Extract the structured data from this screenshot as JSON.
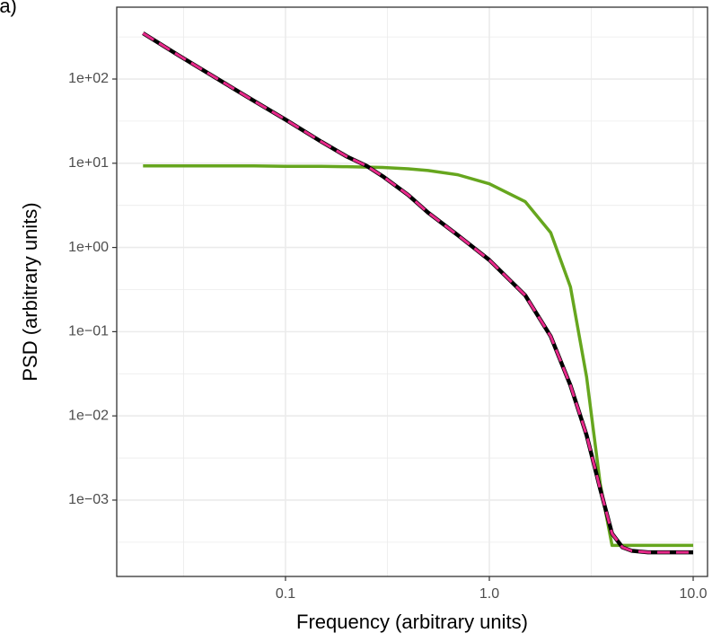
{
  "chart_data": {
    "type": "line",
    "title": "(a)",
    "xlabel": "Frequency (arbitrary units)",
    "ylabel": "PSD (arbitrary units)",
    "log_x": true,
    "log_y": true,
    "grid": true,
    "x": [
      0.02,
      0.03,
      0.05,
      0.07,
      0.1,
      0.15,
      0.2,
      0.25,
      0.3,
      0.4,
      0.5,
      0.7,
      1,
      1.5,
      2,
      2.5,
      3,
      3.5,
      4,
      4.5,
      5,
      6,
      7,
      8,
      10
    ],
    "series": [
      {
        "color": "#66a61e",
        "width": 3.5,
        "dash": false,
        "values": [
          9.3,
          9.3,
          9.3,
          9.3,
          9.2,
          9.2,
          9.1,
          9.0,
          8.9,
          8.6,
          8.2,
          7.3,
          5.7,
          3.5,
          1.5,
          0.34,
          0.029,
          0.00155,
          0.00029,
          0.00029,
          0.00029,
          0.00029,
          0.00029,
          0.00029,
          0.00029
        ]
      },
      {
        "color": "#000000",
        "width": 4.5,
        "dash": false,
        "values": [
          350,
          190,
          90,
          55,
          33,
          18,
          12,
          9.3,
          7,
          4.2,
          2.6,
          1.4,
          0.71,
          0.27,
          0.088,
          0.023,
          0.0059,
          0.00135,
          0.0004,
          0.000275,
          0.00025,
          0.00024,
          0.00024,
          0.00024,
          0.00024
        ]
      },
      {
        "color": "#e7298a",
        "width": 3,
        "dash": true,
        "values": [
          350,
          190,
          90,
          55,
          33,
          18,
          12,
          9.3,
          7,
          4.2,
          2.6,
          1.4,
          0.71,
          0.27,
          0.088,
          0.023,
          0.0059,
          0.00135,
          0.0004,
          0.000275,
          0.00025,
          0.00024,
          0.00024,
          0.00024,
          0.00024
        ]
      }
    ],
    "xlim": [
      0.01486,
      11.76
    ],
    "xticks": [
      0.1,
      {
        "value": 1,
        "label": "1.0"
      },
      {
        "value": 10,
        "label": "10.0"
      }
    ],
    "ylim": [
      0.000124,
      713
    ],
    "yticks": [
      {
        "value": 0.001,
        "label": "1e−03"
      },
      {
        "value": 0.01,
        "label": "1e−02"
      },
      {
        "value": 0.1,
        "label": "1e−01"
      },
      {
        "value": 1,
        "label": "1e+00"
      },
      {
        "value": 10,
        "label": "1e+01"
      },
      {
        "value": 100,
        "label": "1e+02"
      }
    ]
  }
}
